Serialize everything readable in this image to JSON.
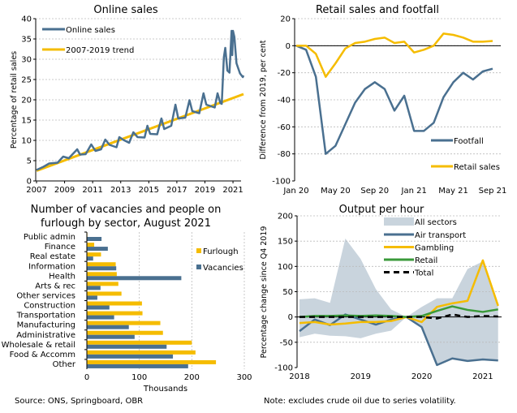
{
  "colors": {
    "blue": "#4a7090",
    "yellow": "#f5bc00",
    "green": "#3a9a3a",
    "band": "#c9d4dd",
    "black": "#000000"
  },
  "source": "Source: ONS, Springboard, OBR",
  "note": "Note: excludes crude oil due to series volatility.",
  "chart_data": [
    {
      "type": "line",
      "title": "Online sales",
      "ylabel": "Percentage of retail sales",
      "ylim": [
        0,
        40
      ],
      "yticks": [
        0,
        5,
        10,
        15,
        20,
        25,
        30,
        35,
        40
      ],
      "xlim": [
        2007,
        2021.75
      ],
      "xticks": [
        "2007",
        "2009",
        "2011",
        "2013",
        "2015",
        "2017",
        "2019",
        "2021"
      ],
      "grid": true,
      "legend": "top-left",
      "series": [
        {
          "name": "Online sales",
          "color": "blue",
          "points": [
            [
              2007,
              2.7
            ],
            [
              2007.5,
              3.5
            ],
            [
              2007.9,
              4.3
            ],
            [
              2008.5,
              4.5
            ],
            [
              2008.9,
              6
            ],
            [
              2009.3,
              5.6
            ],
            [
              2009.9,
              7.8
            ],
            [
              2010.1,
              6.5
            ],
            [
              2010.5,
              6.6
            ],
            [
              2010.9,
              9
            ],
            [
              2011.2,
              7.4
            ],
            [
              2011.6,
              7.8
            ],
            [
              2011.9,
              10.2
            ],
            [
              2012.2,
              8.9
            ],
            [
              2012.7,
              8.3
            ],
            [
              2012.9,
              10.8
            ],
            [
              2013.2,
              10.1
            ],
            [
              2013.6,
              9.4
            ],
            [
              2013.9,
              12
            ],
            [
              2014.2,
              10.8
            ],
            [
              2014.7,
              10.7
            ],
            [
              2014.9,
              13.6
            ],
            [
              2015.1,
              11.6
            ],
            [
              2015.6,
              11.5
            ],
            [
              2015.9,
              15.4
            ],
            [
              2016.1,
              12.8
            ],
            [
              2016.6,
              13.6
            ],
            [
              2016.9,
              18.8
            ],
            [
              2017.1,
              15.4
            ],
            [
              2017.6,
              15.6
            ],
            [
              2017.9,
              19.9
            ],
            [
              2018.1,
              17.2
            ],
            [
              2018.6,
              16.7
            ],
            [
              2018.9,
              21.6
            ],
            [
              2019.1,
              18.8
            ],
            [
              2019.7,
              18.1
            ],
            [
              2019.9,
              21.6
            ],
            [
              2020.1,
              19.2
            ],
            [
              2020.2,
              19
            ],
            [
              2020.35,
              30.5
            ],
            [
              2020.45,
              32.8
            ],
            [
              2020.6,
              27.2
            ],
            [
              2020.75,
              26.7
            ],
            [
              2020.9,
              37
            ],
            [
              2020.95,
              31
            ],
            [
              2021,
              37
            ],
            [
              2021.1,
              35.5
            ],
            [
              2021.25,
              29
            ],
            [
              2021.5,
              26.5
            ],
            [
              2021.7,
              25.6
            ],
            [
              2021.75,
              26
            ]
          ]
        },
        {
          "name": "2007-2019 trend",
          "color": "yellow",
          "points": [
            [
              2007,
              2.5
            ],
            [
              2021.75,
              21.4
            ]
          ]
        }
      ]
    },
    {
      "type": "line",
      "title": "Retail sales and footfall",
      "ylabel": "Difference from 2019, per cent",
      "ylim": [
        -100,
        20
      ],
      "yticks": [
        -100,
        -80,
        -60,
        -40,
        -20,
        0,
        20
      ],
      "xticks": [
        "Jan 20",
        "May 20",
        "Sep 20",
        "Jan 21",
        "May 21",
        "Sep 21"
      ],
      "grid": true,
      "legend": "bottom-right",
      "series": [
        {
          "name": "Footfall",
          "color": "blue",
          "values": [
            0,
            -3,
            -23,
            -80,
            -74,
            -58,
            -42,
            -32,
            -27,
            -32,
            -48,
            -37,
            -63,
            -63,
            -57,
            -38,
            -27,
            -20,
            -25,
            -19,
            -17
          ]
        },
        {
          "name": "Retail sales",
          "color": "yellow",
          "values": [
            0,
            0,
            -6,
            -23,
            -13,
            -2,
            2,
            3,
            5,
            6,
            2,
            3,
            -5,
            -3,
            0,
            9,
            8,
            6,
            3,
            3,
            3.5
          ]
        }
      ]
    },
    {
      "type": "bar",
      "orientation": "horizontal",
      "title": [
        "Number of vacancies and people on",
        "furlough by sector, August 2021"
      ],
      "xlabel": "Thousands",
      "xlim": [
        0,
        300
      ],
      "xticks": [
        0,
        100,
        200,
        300
      ],
      "grid": true,
      "legend": "top-right",
      "categories": [
        "Public admin",
        "Finance",
        "Real estate",
        "Information",
        "Health",
        "Arts & rec",
        "Other services",
        "Construction",
        "Transportation",
        "Manufacturing",
        "Administrative",
        "Wholesale & retail",
        "Food & Accomm",
        "Other"
      ],
      "series": [
        {
          "name": "Furlough",
          "color": "yellow",
          "values": [
            1,
            14,
            27,
            55,
            57,
            60,
            66,
            105,
            106,
            140,
            145,
            200,
            207,
            246
          ]
        },
        {
          "name": "Vacancies",
          "color": "blue",
          "values": [
            28,
            40,
            12,
            56,
            180,
            26,
            20,
            43,
            52,
            80,
            91,
            152,
            164,
            193
          ]
        }
      ]
    },
    {
      "type": "line",
      "title": "Output per hour",
      "ylabel": "Percentage change since Q4 2019",
      "ylim": [
        -100,
        200
      ],
      "yticks": [
        -100,
        -50,
        0,
        50,
        100,
        150,
        200
      ],
      "xticks": [
        "2018",
        "2019",
        "2020",
        "2021"
      ],
      "grid": true,
      "legend": "top-right",
      "x": [
        2018,
        2018.25,
        2018.5,
        2018.75,
        2019,
        2019.25,
        2019.5,
        2019.75,
        2020,
        2020.25,
        2020.5,
        2020.75,
        2021,
        2021.25
      ],
      "band": {
        "name": "All sectors",
        "color": "band",
        "upper": [
          35,
          37,
          28,
          155,
          115,
          55,
          15,
          0,
          20,
          37,
          37,
          95,
          110,
          25
        ],
        "lower": [
          -40,
          -33,
          -37,
          -38,
          -42,
          -33,
          -27,
          0,
          -22,
          -95,
          -82,
          -87,
          -85,
          -86
        ]
      },
      "series": [
        {
          "name": "Air transport",
          "color": "blue",
          "values": [
            -28,
            -5,
            -16,
            5,
            -5,
            -15,
            -5,
            0,
            -20,
            -95,
            -82,
            -87,
            -84,
            -86
          ]
        },
        {
          "name": "Gambling",
          "color": "yellow",
          "values": [
            -12,
            -10,
            -15,
            -13,
            -10,
            -10,
            -8,
            0,
            -10,
            20,
            27,
            32,
            112,
            22
          ]
        },
        {
          "name": "Retail",
          "color": "green",
          "values": [
            0,
            2,
            2,
            3,
            2,
            3,
            2,
            0,
            2,
            12,
            21,
            14,
            10,
            15
          ]
        },
        {
          "name": "Total",
          "color": "black",
          "dashed": true,
          "values": [
            0,
            0,
            0,
            0,
            0,
            0,
            0,
            0,
            0,
            -3,
            5,
            0,
            2,
            1
          ]
        }
      ]
    }
  ]
}
